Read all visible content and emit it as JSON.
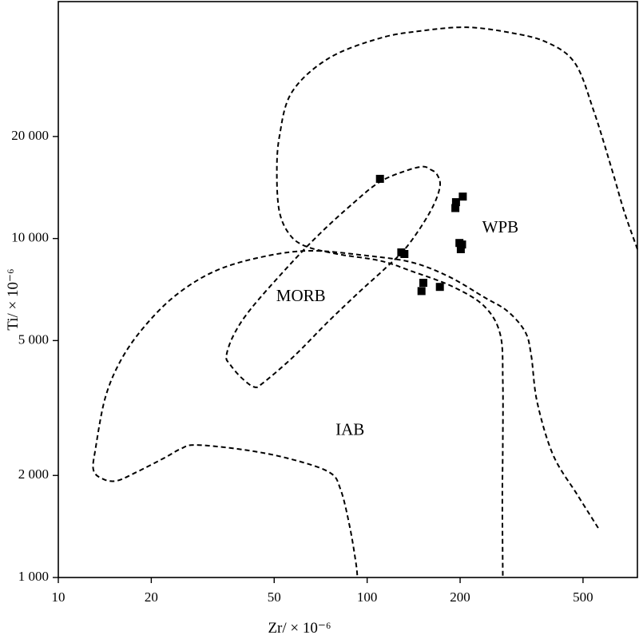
{
  "chart_data": {
    "type": "scatter",
    "xlabel": "Zr/ × 10⁻⁶",
    "ylabel": "Ti/ × 10⁻⁶",
    "xscale": "log",
    "yscale": "log",
    "xlim": [
      10,
      750
    ],
    "ylim": [
      1000,
      50000
    ],
    "xticks": [
      {
        "value": 10,
        "label": "10"
      },
      {
        "value": 20,
        "label": "20"
      },
      {
        "value": 50,
        "label": "50"
      },
      {
        "value": 100,
        "label": "100"
      },
      {
        "value": 200,
        "label": "200"
      },
      {
        "value": 500,
        "label": "500"
      }
    ],
    "yticks": [
      {
        "value": 1000,
        "label": "1 000"
      },
      {
        "value": 2000,
        "label": "2 000"
      },
      {
        "value": 5000,
        "label": "5 000"
      },
      {
        "value": 10000,
        "label": "10 000"
      },
      {
        "value": 20000,
        "label": "20 000"
      }
    ],
    "grid": false,
    "points": [
      {
        "x": 110,
        "y": 15000
      },
      {
        "x": 129,
        "y": 9100
      },
      {
        "x": 132,
        "y": 9000
      },
      {
        "x": 150,
        "y": 7000
      },
      {
        "x": 152,
        "y": 7400
      },
      {
        "x": 172,
        "y": 7200
      },
      {
        "x": 193,
        "y": 12300
      },
      {
        "x": 194,
        "y": 12800
      },
      {
        "x": 199,
        "y": 9700
      },
      {
        "x": 201,
        "y": 9300
      },
      {
        "x": 203,
        "y": 9600
      },
      {
        "x": 204,
        "y": 13300
      }
    ],
    "regions": [
      {
        "label": "WPB",
        "label_at": {
          "x": 270,
          "y": 10700
        },
        "boundary": [
          [
            750,
            9300
          ],
          [
            680,
            12000
          ],
          [
            620,
            16000
          ],
          [
            540,
            24000
          ],
          [
            470,
            33000
          ],
          [
            380,
            38000
          ],
          [
            290,
            40500
          ],
          [
            210,
            42000
          ],
          [
            150,
            41000
          ],
          [
            110,
            39000
          ],
          [
            75,
            34000
          ],
          [
            57,
            27000
          ],
          [
            52,
            20000
          ],
          [
            51,
            15500
          ],
          [
            52,
            12000
          ],
          [
            56,
            10300
          ],
          [
            63,
            9500
          ],
          [
            80,
            9000
          ],
          [
            110,
            8600
          ],
          [
            140,
            8000
          ],
          [
            190,
            7200
          ],
          [
            240,
            6300
          ],
          [
            270,
            5200
          ],
          [
            275,
            3800
          ],
          [
            275,
            2500
          ],
          [
            274,
            1700
          ],
          [
            275,
            1000
          ]
        ]
      },
      {
        "label": "MORB",
        "label_at": {
          "x": 61,
          "y": 6700
        },
        "boundary": [
          [
            160,
            16000
          ],
          [
            168,
            15500
          ],
          [
            172,
            14200
          ],
          [
            160,
            12000
          ],
          [
            135,
            9500
          ],
          [
            115,
            8200
          ],
          [
            95,
            7000
          ],
          [
            75,
            5700
          ],
          [
            58,
            4500
          ],
          [
            46,
            3750
          ],
          [
            43,
            3650
          ],
          [
            39,
            3900
          ],
          [
            36,
            4250
          ],
          [
            35,
            4500
          ],
          [
            37,
            5200
          ],
          [
            42,
            6200
          ],
          [
            55,
            8200
          ],
          [
            70,
            10300
          ],
          [
            90,
            12700
          ],
          [
            110,
            14700
          ],
          [
            135,
            15900
          ],
          [
            152,
            16300
          ],
          [
            160,
            16000
          ]
        ]
      },
      {
        "label": "IAB",
        "label_at": {
          "x": 88,
          "y": 2700
        },
        "boundary": [
          [
            560,
            1400
          ],
          [
            480,
            1750
          ],
          [
            400,
            2300
          ],
          [
            355,
            3300
          ],
          [
            340,
            4500
          ],
          [
            325,
            5300
          ],
          [
            285,
            6100
          ],
          [
            240,
            6700
          ],
          [
            185,
            7700
          ],
          [
            140,
            8500
          ],
          [
            100,
            8900
          ],
          [
            65,
            9200
          ],
          [
            45,
            8800
          ],
          [
            32,
            8000
          ],
          [
            24,
            6800
          ],
          [
            19,
            5500
          ],
          [
            16,
            4400
          ],
          [
            14.2,
            3400
          ],
          [
            13.2,
            2400
          ],
          [
            13,
            2070
          ],
          [
            14,
            1950
          ],
          [
            15.5,
            1930
          ],
          [
            18,
            2050
          ],
          [
            22,
            2250
          ],
          [
            25,
            2400
          ],
          [
            28,
            2460
          ],
          [
            40,
            2380
          ],
          [
            55,
            2250
          ],
          [
            75,
            2050
          ],
          [
            82,
            1820
          ],
          [
            88,
            1400
          ],
          [
            92,
            1100
          ],
          [
            93,
            1000
          ]
        ]
      }
    ]
  }
}
